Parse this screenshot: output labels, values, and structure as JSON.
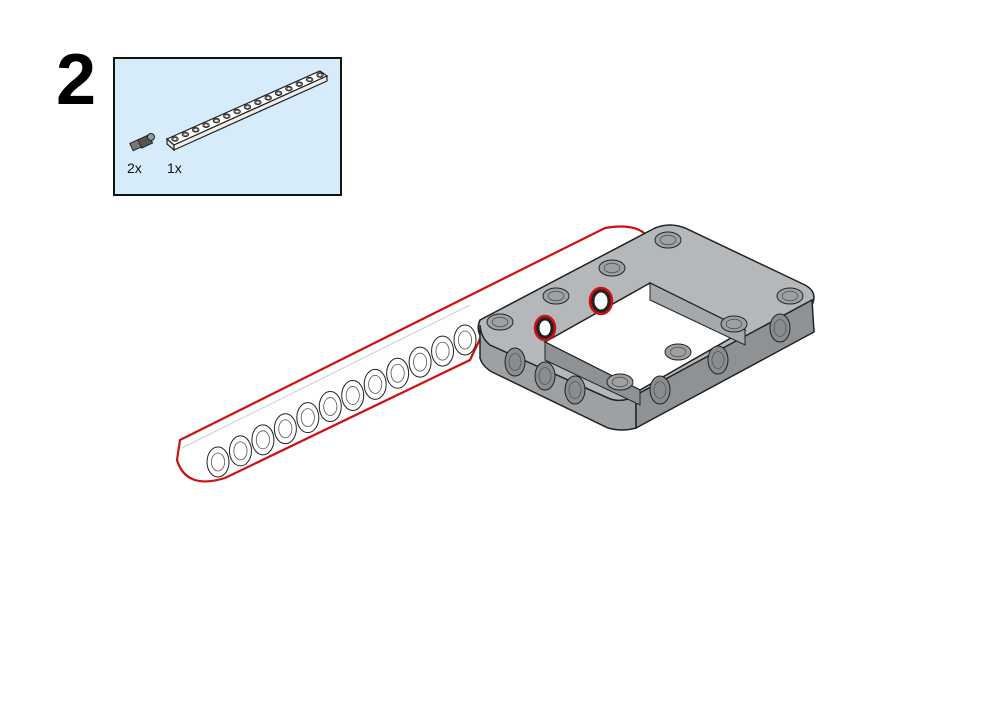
{
  "step": {
    "number": "2"
  },
  "parts_list": {
    "items": [
      {
        "part": "connector-pin",
        "count": "2x"
      },
      {
        "part": "straight-beam-15",
        "count": "1x"
      }
    ]
  },
  "colors": {
    "parts_panel_bg": "#d6ecfb",
    "beam_white": "#ffffff",
    "frame_gray": "#9ea1a3",
    "highlight_red": "#d01010",
    "outline": "#222222"
  }
}
